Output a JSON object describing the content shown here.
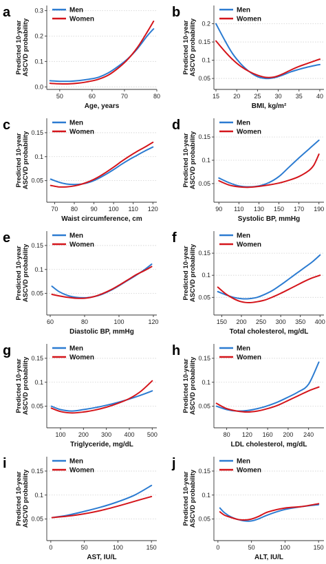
{
  "colors": {
    "men": "#2b7bd1",
    "women": "#d4141a",
    "grid": "#d0d0d0",
    "axis": "#333333"
  },
  "chart_data": [
    {
      "panel": "a",
      "type": "line",
      "xlabel": "Age, years",
      "ylabel_line1": "Predicted 10-year",
      "ylabel_line2": "ASCVD probability",
      "xlim": [
        46,
        80
      ],
      "ylim": [
        -0.01,
        0.32
      ],
      "xticks": [
        50,
        60,
        70,
        80
      ],
      "yticks": [
        0,
        0.1,
        0.2,
        0.3
      ],
      "xtick_labels": [
        "50",
        "60",
        "70",
        "80"
      ],
      "ytick_labels": [
        "0.0",
        "0.1",
        "0.2",
        "0.3"
      ],
      "legend": [
        "Men",
        "Women"
      ],
      "series": [
        {
          "name": "Men",
          "x": [
            47,
            50,
            53,
            56,
            59,
            62,
            65,
            68,
            71,
            74,
            77,
            79
          ],
          "y": [
            0.024,
            0.022,
            0.022,
            0.025,
            0.03,
            0.038,
            0.055,
            0.08,
            0.11,
            0.15,
            0.2,
            0.228
          ]
        },
        {
          "name": "Women",
          "x": [
            47,
            50,
            53,
            56,
            59,
            62,
            65,
            68,
            71,
            74,
            77,
            79
          ],
          "y": [
            0.014,
            0.012,
            0.012,
            0.015,
            0.021,
            0.03,
            0.046,
            0.073,
            0.108,
            0.155,
            0.215,
            0.258
          ]
        }
      ]
    },
    {
      "panel": "b",
      "type": "line",
      "xlabel": "BMI, kg/m²",
      "ylabel_line1": "Predicted 10-year",
      "ylabel_line2": "ASCVD probability",
      "xlim": [
        14.5,
        41
      ],
      "ylim": [
        0.02,
        0.25
      ],
      "xticks": [
        15,
        20,
        25,
        30,
        35,
        40
      ],
      "yticks": [
        0.05,
        0.1,
        0.15,
        0.2
      ],
      "xtick_labels": [
        "15",
        "20",
        "25",
        "30",
        "35",
        "40"
      ],
      "ytick_labels": [
        "0.05",
        "0.1",
        "0.15",
        "0.2"
      ],
      "legend": [
        "Men",
        "Women"
      ],
      "series": [
        {
          "name": "Men",
          "x": [
            15,
            17,
            19,
            21,
            23,
            25,
            27,
            29,
            31,
            33,
            35,
            37,
            39,
            40
          ],
          "y": [
            0.2,
            0.157,
            0.118,
            0.09,
            0.069,
            0.055,
            0.05,
            0.052,
            0.059,
            0.068,
            0.075,
            0.081,
            0.086,
            0.088
          ]
        },
        {
          "name": "Women",
          "x": [
            15,
            17,
            19,
            21,
            23,
            25,
            27,
            29,
            31,
            33,
            35,
            37,
            39,
            40
          ],
          "y": [
            0.153,
            0.126,
            0.102,
            0.083,
            0.069,
            0.059,
            0.053,
            0.054,
            0.062,
            0.073,
            0.083,
            0.091,
            0.099,
            0.103
          ]
        }
      ]
    },
    {
      "panel": "c",
      "type": "line",
      "xlabel": "Waist circumference, cm",
      "ylabel_line1": "Predicted 10-year",
      "ylabel_line2": "ASCVD probability",
      "xlim": [
        66,
        122
      ],
      "ylim": [
        0.005,
        0.18
      ],
      "xticks": [
        70,
        80,
        90,
        100,
        110,
        120
      ],
      "yticks": [
        0.05,
        0.1,
        0.15
      ],
      "xtick_labels": [
        "70",
        "80",
        "90",
        "100",
        "110",
        "120"
      ],
      "ytick_labels": [
        "0.05",
        "0.1",
        "0.15"
      ],
      "legend": [
        "Men",
        "Women"
      ],
      "series": [
        {
          "name": "Men",
          "x": [
            68,
            72,
            76,
            80,
            84,
            88,
            92,
            96,
            100,
            104,
            108,
            112,
            116,
            120
          ],
          "y": [
            0.053,
            0.047,
            0.043,
            0.042,
            0.043,
            0.047,
            0.054,
            0.063,
            0.073,
            0.084,
            0.094,
            0.103,
            0.112,
            0.12
          ]
        },
        {
          "name": "Women",
          "x": [
            68,
            72,
            76,
            80,
            84,
            88,
            92,
            96,
            100,
            104,
            108,
            112,
            116,
            120
          ],
          "y": [
            0.04,
            0.037,
            0.037,
            0.039,
            0.043,
            0.049,
            0.057,
            0.067,
            0.078,
            0.09,
            0.101,
            0.111,
            0.12,
            0.13
          ]
        }
      ]
    },
    {
      "panel": "d",
      "type": "line",
      "xlabel": "Systolic BP, mmHg",
      "ylabel_line1": "Predicted 10-year",
      "ylabel_line2": "ASCVD probability",
      "xlim": [
        85,
        195
      ],
      "ylim": [
        0.01,
        0.19
      ],
      "xticks": [
        90,
        110,
        130,
        150,
        170,
        190
      ],
      "yticks": [
        0.05,
        0.1,
        0.15
      ],
      "xtick_labels": [
        "90",
        "110",
        "130",
        "150",
        "170",
        "190"
      ],
      "ytick_labels": [
        "0.05",
        "0.1",
        "0.15"
      ],
      "legend": [
        "Men",
        "Women"
      ],
      "series": [
        {
          "name": "Men",
          "x": [
            90,
            100,
            110,
            120,
            130,
            140,
            150,
            160,
            170,
            180,
            190
          ],
          "y": [
            0.062,
            0.052,
            0.045,
            0.043,
            0.045,
            0.052,
            0.065,
            0.085,
            0.105,
            0.124,
            0.143
          ]
        },
        {
          "name": "Women",
          "x": [
            90,
            100,
            110,
            120,
            130,
            140,
            150,
            160,
            170,
            180,
            185,
            190
          ],
          "y": [
            0.056,
            0.047,
            0.043,
            0.042,
            0.044,
            0.047,
            0.051,
            0.057,
            0.065,
            0.078,
            0.09,
            0.113
          ]
        }
      ]
    },
    {
      "panel": "e",
      "type": "line",
      "xlabel": "Diastolic BP, mmHg",
      "ylabel_line1": "Predicted 10-year",
      "ylabel_line2": "ASCVD probability",
      "xlim": [
        58,
        122
      ],
      "ylim": [
        0.005,
        0.18
      ],
      "xticks": [
        60,
        80,
        100,
        120
      ],
      "yticks": [
        0.05,
        0.1,
        0.15
      ],
      "xtick_labels": [
        "60",
        "80",
        "100",
        "120"
      ],
      "ytick_labels": [
        "0.05",
        "0.1",
        "0.15"
      ],
      "legend": [
        "Men",
        "Women"
      ],
      "series": [
        {
          "name": "Men",
          "x": [
            61,
            65,
            70,
            75,
            80,
            85,
            90,
            95,
            100,
            105,
            110,
            115,
            119
          ],
          "y": [
            0.065,
            0.054,
            0.046,
            0.042,
            0.041,
            0.043,
            0.048,
            0.056,
            0.066,
            0.077,
            0.088,
            0.1,
            0.111
          ]
        },
        {
          "name": "Women",
          "x": [
            61,
            65,
            70,
            75,
            80,
            85,
            90,
            95,
            100,
            105,
            110,
            115,
            119
          ],
          "y": [
            0.048,
            0.045,
            0.042,
            0.04,
            0.04,
            0.043,
            0.049,
            0.057,
            0.067,
            0.078,
            0.089,
            0.098,
            0.106
          ]
        }
      ]
    },
    {
      "panel": "f",
      "type": "line",
      "xlabel": "Total cholesterol, mg/dL",
      "ylabel_line1": "Predicted 10-year",
      "ylabel_line2": "ASCVD probability",
      "xlim": [
        130,
        410
      ],
      "ylim": [
        0.01,
        0.2
      ],
      "xticks": [
        150,
        200,
        250,
        300,
        350,
        400
      ],
      "yticks": [
        0.05,
        0.1,
        0.15
      ],
      "xtick_labels": [
        "150",
        "200",
        "250",
        "300",
        "350",
        "400"
      ],
      "ytick_labels": [
        "0.05",
        "0.1",
        "0.15"
      ],
      "legend": [
        "Men",
        "Women"
      ],
      "series": [
        {
          "name": "Men",
          "x": [
            140,
            160,
            180,
            200,
            220,
            240,
            260,
            280,
            300,
            320,
            340,
            360,
            380,
            400
          ],
          "y": [
            0.063,
            0.056,
            0.05,
            0.047,
            0.047,
            0.05,
            0.057,
            0.066,
            0.078,
            0.091,
            0.104,
            0.117,
            0.13,
            0.146
          ]
        },
        {
          "name": "Women",
          "x": [
            140,
            160,
            180,
            200,
            220,
            240,
            260,
            280,
            300,
            320,
            340,
            360,
            380,
            400
          ],
          "y": [
            0.073,
            0.058,
            0.047,
            0.04,
            0.038,
            0.04,
            0.044,
            0.051,
            0.059,
            0.068,
            0.077,
            0.086,
            0.094,
            0.1
          ]
        }
      ]
    },
    {
      "panel": "g",
      "type": "line",
      "xlabel": "Triglyceride, mg/dL",
      "ylabel_line1": "Predicted 10-year",
      "ylabel_line2": "ASCVD probability",
      "xlim": [
        40,
        520
      ],
      "ylim": [
        0.005,
        0.18
      ],
      "xticks": [
        100,
        200,
        300,
        400,
        500
      ],
      "yticks": [
        0.05,
        0.1,
        0.15
      ],
      "xtick_labels": [
        "100",
        "200",
        "300",
        "400",
        "500"
      ],
      "ytick_labels": [
        "0.05",
        "0.1",
        "0.15"
      ],
      "legend": [
        "Men",
        "Women"
      ],
      "series": [
        {
          "name": "Men",
          "x": [
            60,
            100,
            150,
            200,
            250,
            300,
            350,
            400,
            450,
            500
          ],
          "y": [
            0.05,
            0.043,
            0.04,
            0.043,
            0.047,
            0.052,
            0.058,
            0.065,
            0.073,
            0.082
          ]
        },
        {
          "name": "Women",
          "x": [
            60,
            100,
            150,
            200,
            250,
            300,
            350,
            400,
            450,
            500
          ],
          "y": [
            0.046,
            0.039,
            0.036,
            0.038,
            0.042,
            0.048,
            0.056,
            0.066,
            0.081,
            0.103
          ]
        }
      ]
    },
    {
      "panel": "h",
      "type": "line",
      "xlabel": "LDL cholesterol, mg/dL",
      "ylabel_line1": "Predicted 10-year",
      "ylabel_line2": "ASCVD probability",
      "xlim": [
        55,
        270
      ],
      "ylim": [
        0.005,
        0.18
      ],
      "xticks": [
        80,
        120,
        160,
        200,
        240
      ],
      "yticks": [
        0.05,
        0.1,
        0.15
      ],
      "xtick_labels": [
        "80",
        "120",
        "160",
        "200",
        "240"
      ],
      "ytick_labels": [
        "0.05",
        "0.1",
        "0.15"
      ],
      "legend": [
        "Men",
        "Women"
      ],
      "series": [
        {
          "name": "Men",
          "x": [
            60,
            80,
            100,
            120,
            140,
            160,
            180,
            200,
            220,
            240,
            260
          ],
          "y": [
            0.05,
            0.043,
            0.04,
            0.041,
            0.045,
            0.051,
            0.059,
            0.069,
            0.08,
            0.096,
            0.142
          ]
        },
        {
          "name": "Women",
          "x": [
            60,
            80,
            100,
            120,
            140,
            160,
            180,
            200,
            220,
            240,
            260
          ],
          "y": [
            0.056,
            0.045,
            0.04,
            0.038,
            0.04,
            0.045,
            0.052,
            0.062,
            0.072,
            0.082,
            0.09
          ]
        }
      ]
    },
    {
      "panel": "i",
      "type": "line",
      "xlabel": "AST, IU/L",
      "ylabel_line1": "Predicted 10-year",
      "ylabel_line2": "ASCVD probability",
      "xlim": [
        -6,
        158
      ],
      "ylim": [
        0.005,
        0.18
      ],
      "xticks": [
        0,
        50,
        100,
        150
      ],
      "yticks": [
        0.05,
        0.1,
        0.15
      ],
      "xtick_labels": [
        "0",
        "50",
        "100",
        "150"
      ],
      "ytick_labels": [
        "0.05",
        "0.1",
        "0.15"
      ],
      "legend": [
        "Men",
        "Women"
      ],
      "series": [
        {
          "name": "Men",
          "x": [
            2,
            25,
            50,
            75,
            100,
            125,
            150
          ],
          "y": [
            0.053,
            0.058,
            0.066,
            0.075,
            0.086,
            0.1,
            0.12
          ]
        },
        {
          "name": "Women",
          "x": [
            2,
            25,
            50,
            75,
            100,
            125,
            150
          ],
          "y": [
            0.053,
            0.056,
            0.061,
            0.068,
            0.077,
            0.087,
            0.097
          ]
        }
      ]
    },
    {
      "panel": "j",
      "type": "line",
      "xlabel": "ALT, IU/L",
      "ylabel_line1": "Predicted 10-year",
      "ylabel_line2": "ASCVD probability",
      "xlim": [
        -6,
        158
      ],
      "ylim": [
        0.005,
        0.18
      ],
      "xticks": [
        0,
        50,
        100,
        150
      ],
      "yticks": [
        0.05,
        0.1,
        0.15
      ],
      "xtick_labels": [
        "0",
        "50",
        "100",
        "150"
      ],
      "ytick_labels": [
        "0.05",
        "0.1",
        "0.15"
      ],
      "legend": [
        "Men",
        "Women"
      ],
      "series": [
        {
          "name": "Men",
          "x": [
            3,
            10,
            20,
            30,
            40,
            50,
            60,
            75,
            100,
            125,
            150
          ],
          "y": [
            0.073,
            0.063,
            0.054,
            0.049,
            0.046,
            0.046,
            0.05,
            0.059,
            0.07,
            0.076,
            0.08
          ]
        },
        {
          "name": "Women",
          "x": [
            3,
            10,
            20,
            30,
            40,
            50,
            60,
            75,
            100,
            125,
            150
          ],
          "y": [
            0.065,
            0.058,
            0.053,
            0.049,
            0.048,
            0.05,
            0.055,
            0.065,
            0.073,
            0.076,
            0.082
          ]
        }
      ]
    }
  ]
}
